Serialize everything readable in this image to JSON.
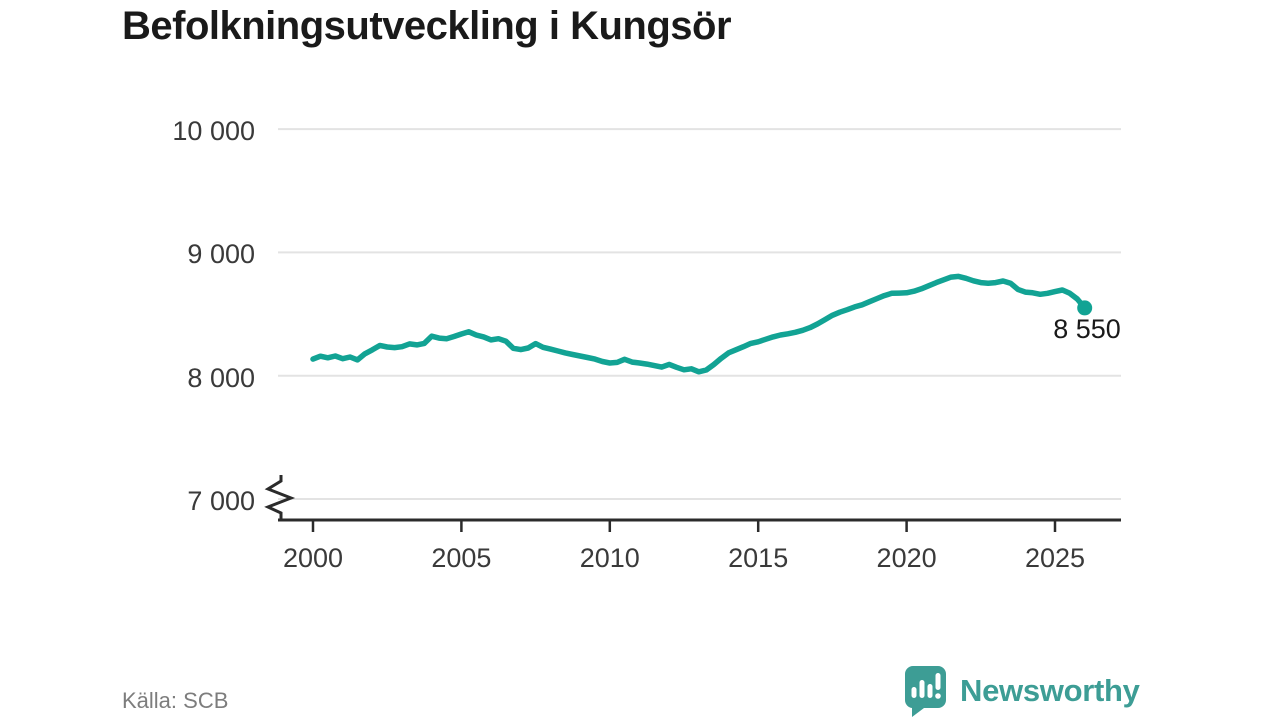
{
  "header": {
    "title": "Befolkningsutveckling i Kungsör"
  },
  "footer": {
    "source": "Källa: SCB",
    "brand": "Newsworthy"
  },
  "colors": {
    "line": "#12a394",
    "brand_teal": "#3d9d95",
    "grid": "#e3e3e3",
    "axis": "#2b2b2b",
    "tick_text": "#3a3a3a",
    "muted_text": "#7d7d7d",
    "title_text": "#1a1a1a"
  },
  "chart_data": {
    "type": "line",
    "title": "Befolkningsutveckling i Kungsör",
    "series_name": "Befolkning",
    "xlabel": "",
    "ylabel": "",
    "x_start": 2000,
    "x_step_years": 0.25,
    "x_end": 2026,
    "values": [
      8135,
      8158,
      8145,
      8160,
      8138,
      8152,
      8128,
      8178,
      8210,
      8245,
      8233,
      8228,
      8235,
      8258,
      8250,
      8262,
      8320,
      8305,
      8300,
      8318,
      8338,
      8356,
      8330,
      8315,
      8290,
      8300,
      8280,
      8222,
      8212,
      8225,
      8260,
      8230,
      8216,
      8200,
      8185,
      8172,
      8160,
      8148,
      8135,
      8115,
      8103,
      8108,
      8133,
      8110,
      8103,
      8094,
      8082,
      8070,
      8092,
      8068,
      8048,
      8056,
      8032,
      8046,
      8090,
      8140,
      8185,
      8210,
      8235,
      8262,
      8275,
      8295,
      8315,
      8330,
      8340,
      8352,
      8368,
      8390,
      8420,
      8455,
      8490,
      8515,
      8535,
      8558,
      8575,
      8600,
      8625,
      8650,
      8668,
      8670,
      8672,
      8685,
      8705,
      8730,
      8755,
      8778,
      8800,
      8805,
      8790,
      8770,
      8755,
      8750,
      8755,
      8768,
      8750,
      8700,
      8678,
      8672,
      8660,
      8668,
      8682,
      8695,
      8668,
      8622,
      8550
    ],
    "end_point": {
      "x": 2026,
      "value": 8550,
      "label": "8 550"
    },
    "y_ticks": [
      {
        "value": 10000,
        "label": "10 000"
      },
      {
        "value": 9000,
        "label": "9 000"
      },
      {
        "value": 8000,
        "label": "8 000"
      },
      {
        "value": 7000,
        "label": "7 000"
      }
    ],
    "x_ticks": [
      {
        "value": 2000,
        "label": "2000"
      },
      {
        "value": 2005,
        "label": "2005"
      },
      {
        "value": 2010,
        "label": "2010"
      },
      {
        "value": 2015,
        "label": "2015"
      },
      {
        "value": 2020,
        "label": "2020"
      },
      {
        "value": 2025,
        "label": "2025"
      }
    ],
    "ylim_visible": [
      7000,
      10000
    ],
    "axis_break": true,
    "grid": "horizontal",
    "legend": "none"
  }
}
